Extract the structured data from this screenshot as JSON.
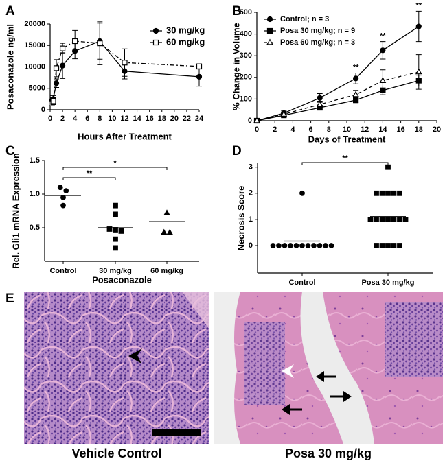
{
  "chart_data": [
    {
      "type": "line",
      "panel_label": "A",
      "xlabel": "Hours After Treatment",
      "ylabel": "Posaconazole ng/ml",
      "x": [
        0.25,
        0.5,
        1,
        2,
        4,
        8,
        12,
        24
      ],
      "xlim": [
        0,
        24
      ],
      "xticks": [
        0,
        2,
        4,
        6,
        8,
        10,
        12,
        14,
        16,
        18,
        20,
        22,
        24
      ],
      "ylim": [
        0,
        20000
      ],
      "yticks": [
        0,
        5000,
        10000,
        15000,
        20000
      ],
      "legend": "upper right",
      "series": [
        {
          "name": "30 mg/kg",
          "color": "#000000",
          "marker": "circle",
          "filled": true,
          "dash": "solid",
          "values": [
            2000,
            2500,
            6200,
            10300,
            13700,
            16000,
            9000,
            7700
          ],
          "errors": [
            500,
            800,
            1000,
            3000,
            1800,
            4200,
            1800,
            2200
          ]
        },
        {
          "name": "60 mg/kg",
          "color": "#000000",
          "marker": "square",
          "filled": false,
          "dash": "dashdot",
          "values": [
            1500,
            2000,
            9700,
            14300,
            16000,
            15500,
            11000,
            10100
          ],
          "errors": [
            500,
            800,
            2000,
            1200,
            2500,
            5000,
            3200,
            600
          ]
        }
      ]
    },
    {
      "type": "line",
      "panel_label": "B",
      "xlabel": "Days of Treatment",
      "ylabel": "% Change in Volume",
      "x": [
        0,
        3,
        7,
        11,
        14,
        18
      ],
      "xlim": [
        0,
        20
      ],
      "xticks": [
        0,
        2,
        4,
        6,
        8,
        10,
        12,
        14,
        16,
        18,
        20
      ],
      "ylim": [
        0,
        500
      ],
      "yticks": [
        0,
        100,
        200,
        300,
        400,
        500
      ],
      "legend": "upper left",
      "series": [
        {
          "name": "Control; n = 3",
          "color": "#000000",
          "marker": "circle",
          "filled": true,
          "dash": "solid",
          "values": [
            0,
            35,
            105,
            195,
            325,
            435
          ],
          "errors": [
            0,
            10,
            20,
            25,
            40,
            70
          ]
        },
        {
          "name": "Posa 30 mg/kg; n = 9",
          "color": "#000000",
          "marker": "square",
          "filled": true,
          "dash": "solid",
          "values": [
            0,
            25,
            60,
            95,
            140,
            185
          ],
          "errors": [
            0,
            8,
            10,
            12,
            20,
            25
          ]
        },
        {
          "name": "Posa 60 mg/kg; n = 3",
          "color": "#000000",
          "marker": "triangle",
          "filled": false,
          "dash": "dashed",
          "values": [
            0,
            30,
            75,
            120,
            185,
            225
          ],
          "errors": [
            0,
            10,
            15,
            20,
            50,
            80
          ]
        }
      ],
      "annotations": [
        {
          "x": 11,
          "text": "**"
        },
        {
          "x": 14,
          "text": "**"
        },
        {
          "x": 18,
          "text": "**"
        }
      ]
    },
    {
      "type": "strip",
      "panel_label": "C",
      "xlabel": "Posaconazole",
      "ylabel": "Rel. Gli1 mRNA Expression",
      "categories": [
        "Control",
        "30 mg/kg",
        "60 mg/kg"
      ],
      "markers": [
        "circle",
        "square",
        "triangle"
      ],
      "color": "#000000",
      "values": [
        [
          1.1,
          1.05,
          0.95,
          0.83
        ],
        [
          0.83,
          0.7,
          0.48,
          0.47,
          0.45,
          0.33,
          0.2
        ],
        [
          0.72,
          0.43,
          0.43
        ]
      ],
      "means": [
        0.98,
        0.5,
        0.59
      ],
      "ylim": [
        0,
        1.5
      ],
      "yticks": [
        0.5,
        {
          "value": 1,
          "label": "1.0"
        },
        1.5
      ],
      "comparisons": [
        {
          "from": 0,
          "to": 1,
          "text": "**"
        },
        {
          "from": 0,
          "to": 2,
          "text": "*"
        }
      ]
    },
    {
      "type": "strip",
      "panel_label": "D",
      "ylabel": "Necrosis Score",
      "categories": [
        "Control",
        "Posa 30 mg/kg"
      ],
      "markers": [
        "circle",
        "square"
      ],
      "color": "#000000",
      "values": [
        [
          2,
          0,
          0,
          0,
          0,
          0,
          0,
          0,
          0,
          0,
          0,
          0
        ],
        [
          3,
          2,
          2,
          2,
          2,
          2,
          1,
          1,
          1,
          1,
          1,
          1,
          1,
          0,
          0,
          0,
          0,
          0
        ]
      ],
      "means": [
        0.17,
        1.11
      ],
      "ylim": [
        -1.05,
        3.15
      ],
      "yticks": [
        0,
        1,
        2,
        3
      ],
      "comparisons": [
        {
          "from": 0,
          "to": 1,
          "text": "**"
        }
      ]
    }
  ],
  "histology": {
    "panel_label": "E",
    "captions": [
      "Vehicle Control",
      "Posa 30 mg/kg"
    ]
  }
}
